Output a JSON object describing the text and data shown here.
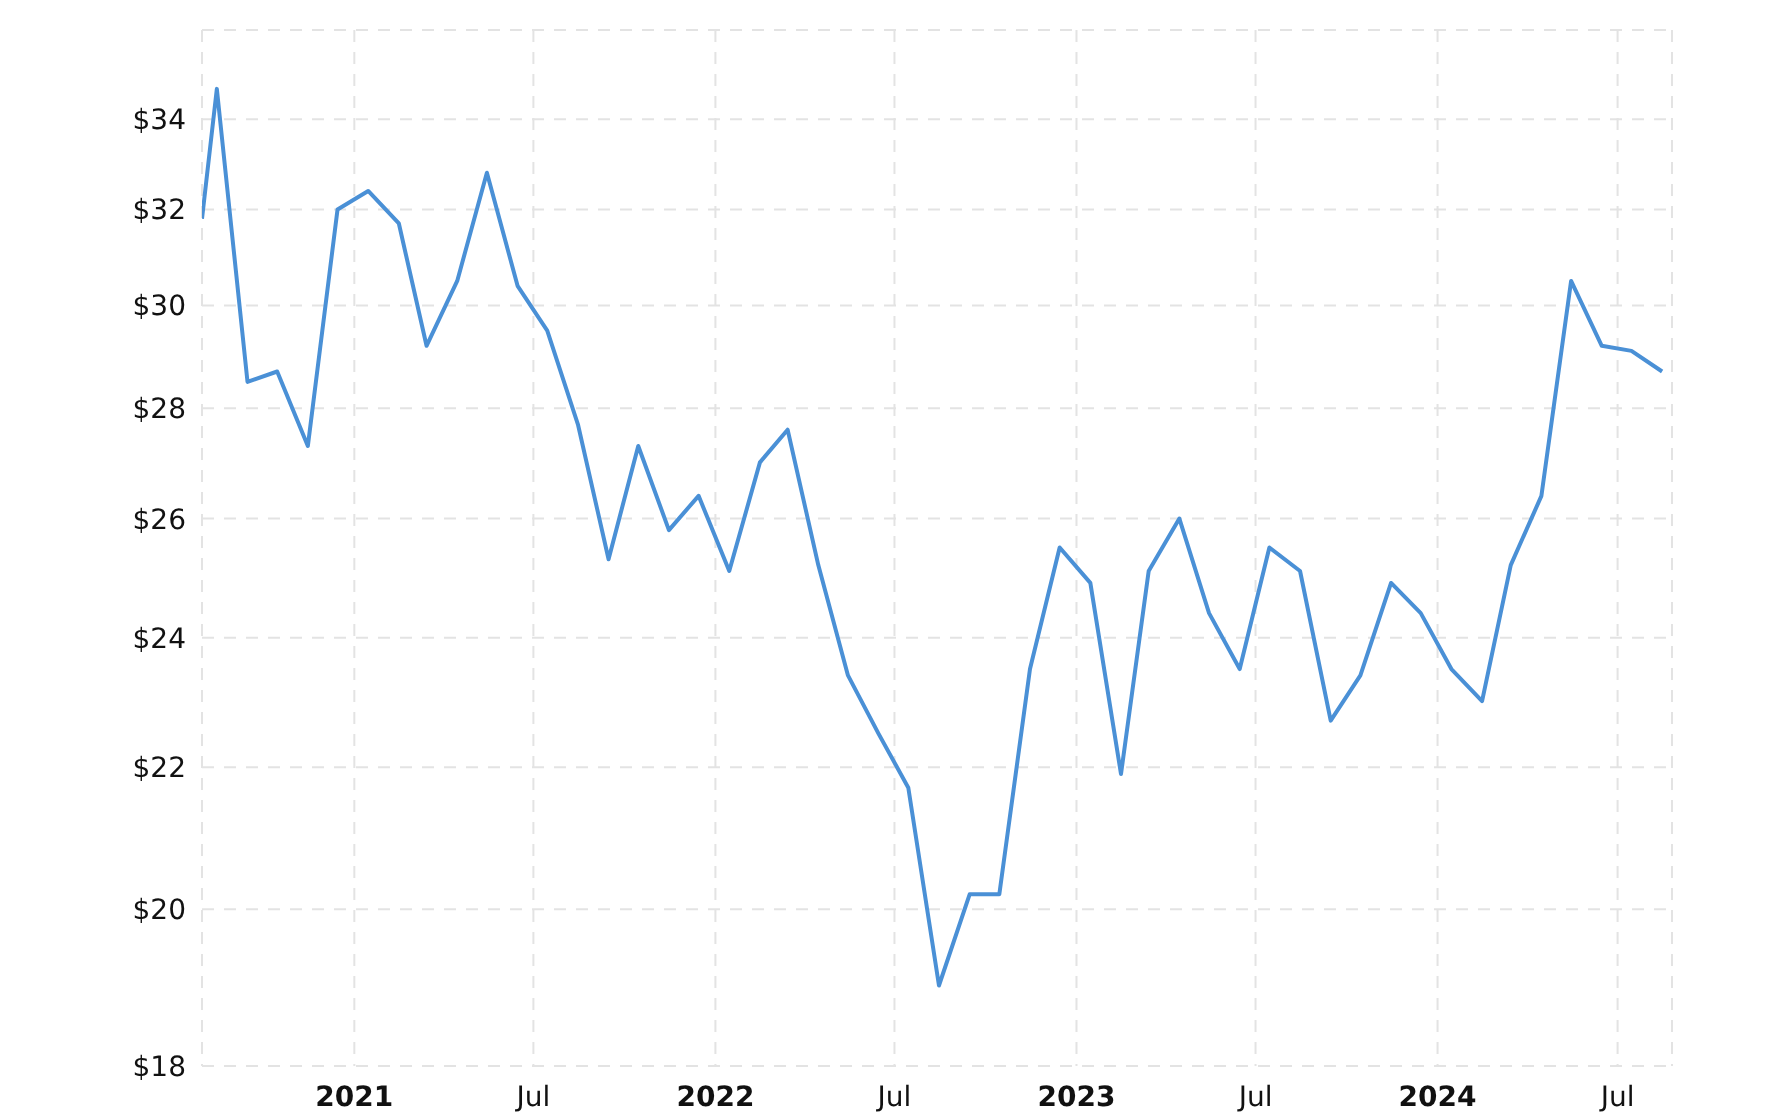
{
  "chart_data": {
    "type": "line",
    "x": [
      "2020-07-31",
      "2020-08-15",
      "2020-09-15",
      "2020-10-15",
      "2020-11-15",
      "2020-12-15",
      "2021-01-15",
      "2021-02-15",
      "2021-03-15",
      "2021-04-15",
      "2021-05-15",
      "2021-06-15",
      "2021-07-15",
      "2021-08-15",
      "2021-09-15",
      "2021-10-15",
      "2021-11-15",
      "2021-12-15",
      "2022-01-15",
      "2022-02-15",
      "2022-03-15",
      "2022-04-15",
      "2022-05-15",
      "2022-06-15",
      "2022-07-15",
      "2022-08-15",
      "2022-09-15",
      "2022-10-15",
      "2022-11-15",
      "2022-12-15",
      "2023-01-15",
      "2023-02-15",
      "2023-03-15",
      "2023-04-15",
      "2023-05-15",
      "2023-06-15",
      "2023-07-15",
      "2023-08-15",
      "2023-09-15",
      "2023-10-15",
      "2023-11-15",
      "2023-12-15",
      "2024-01-15",
      "2024-02-15",
      "2024-03-15",
      "2024-04-15",
      "2024-05-15",
      "2024-06-15",
      "2024-07-15",
      "2024-08-15"
    ],
    "series": [
      {
        "color": "#4a90d6",
        "values": [
          31.8,
          34.7,
          28.5,
          28.7,
          27.3,
          32.0,
          32.4,
          31.7,
          29.2,
          30.5,
          32.8,
          30.4,
          29.5,
          27.7,
          25.3,
          27.3,
          25.8,
          26.4,
          25.1,
          27.0,
          27.6,
          25.2,
          23.4,
          22.5,
          21.7,
          19.0,
          20.2,
          20.2,
          23.5,
          25.5,
          24.9,
          21.9,
          25.1,
          26.0,
          24.4,
          23.5,
          25.5,
          25.1,
          22.7,
          23.4,
          24.9,
          24.4,
          23.5,
          23.0,
          25.2,
          26.4,
          30.5,
          29.2,
          29.1,
          28.7
        ]
      }
    ],
    "xlim": [
      "2020-07-31",
      "2024-08-25"
    ],
    "xticks": [
      {
        "value": "2021-01-01",
        "label": "2021"
      },
      {
        "value": "2021-07-01",
        "label": "Jul"
      },
      {
        "value": "2022-01-01",
        "label": "2022"
      },
      {
        "value": "2022-07-01",
        "label": "Jul"
      },
      {
        "value": "2023-01-01",
        "label": "2023"
      },
      {
        "value": "2023-07-01",
        "label": "Jul"
      },
      {
        "value": "2024-01-01",
        "label": "2024"
      },
      {
        "value": "2024-07-01",
        "label": "Jul"
      }
    ],
    "ylim": [
      18,
      36.1
    ],
    "yticks": [
      {
        "value": 18,
        "label": "$18"
      },
      {
        "value": 20,
        "label": "$20"
      },
      {
        "value": 22,
        "label": "$22"
      },
      {
        "value": 24,
        "label": "$24"
      },
      {
        "value": 26,
        "label": "$26"
      },
      {
        "value": 28,
        "label": "$28"
      },
      {
        "value": 30,
        "label": "$30"
      },
      {
        "value": 32,
        "label": "$32"
      },
      {
        "value": 34,
        "label": "$34"
      }
    ],
    "log": true,
    "grid": true,
    "legend": false,
    "marker": "none",
    "line_style": "solid"
  }
}
